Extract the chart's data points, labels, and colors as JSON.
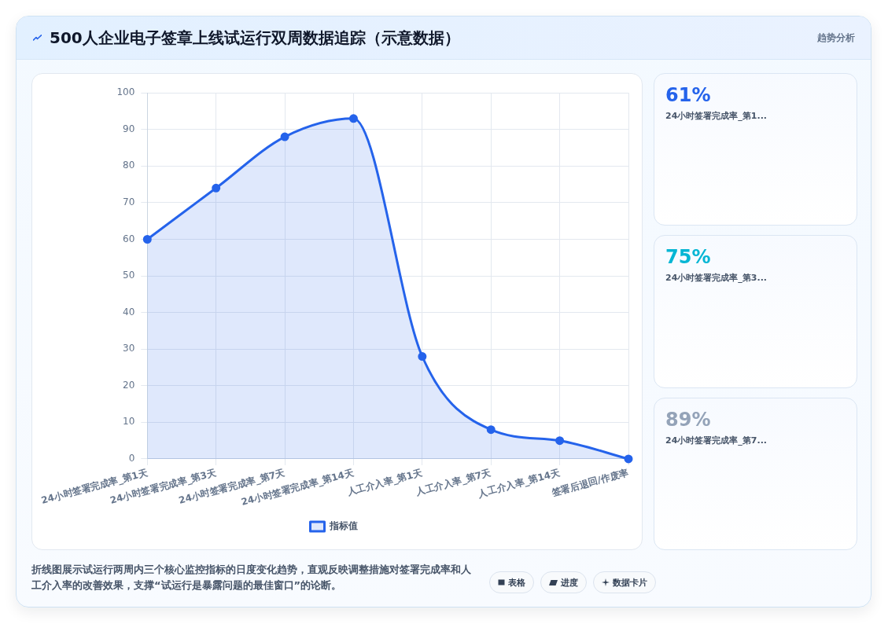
{
  "chart_data": [
    {
      "type": "area",
      "title": "500人企业电子签章上线试运行双周数据追踪（示意数据）",
      "categories": [
        "24小时签署完成率_第1天",
        "24小时签署完成率_第3天",
        "24小时签署完成率_第7天",
        "24小时签署完成率_第14天",
        "人工介入率_第1天",
        "人工介入率_第7天",
        "人工介入率_第14天",
        "签署后退回/作废率"
      ],
      "series": [
        {
          "name": "指标值",
          "color": "#2563eb",
          "values": [
            60,
            74,
            88,
            93,
            28,
            8,
            5,
            0
          ]
        }
      ],
      "ylim": [
        0,
        100
      ],
      "yticks": [
        0,
        10,
        20,
        30,
        40,
        50,
        60,
        70,
        80,
        90,
        100
      ],
      "grid": true,
      "legend": "bottom",
      "marker": "circle",
      "line_style": "solid",
      "annotations": [
        "折线图展示试运行两周内三个核心监控指标的日度变化趋势，直观反映调整措施对签署完成率和人工介入率的改善效果，支撑“试运行是暴露问题的最佳窗口”的论断。",
        "表格",
        "进度",
        "数据卡片"
      ]
    },
    {
      "type": "other",
      "title": "趋势分析",
      "annotations": [
        "61%",
        "24小时签署完成率_第1...",
        "75%",
        "24小时签署完成率_第3...",
        "89%",
        "24小时签署完成率_第7..."
      ]
    }
  ]
}
